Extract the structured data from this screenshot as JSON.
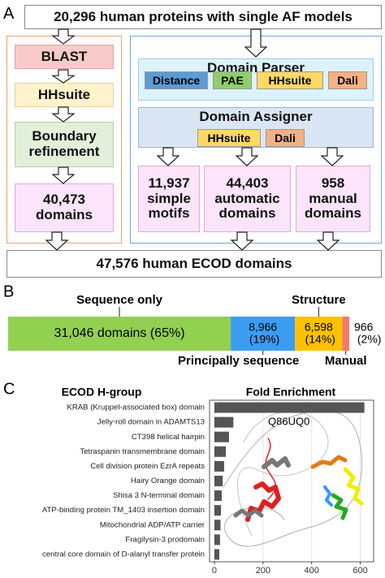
{
  "panel_a": {
    "label": "A",
    "source": "20,296 human proteins with single AF models",
    "left": [
      "BLAST",
      "HHsuite",
      "Boundary refinement",
      "40,473 domains"
    ],
    "parser": {
      "title": "Domain Parser",
      "tools": [
        "Distance",
        "PAE",
        "HHsuite",
        "Dali"
      ]
    },
    "assigner": {
      "title": "Domain Assigner",
      "tools": [
        "HHsuite",
        "Dali"
      ]
    },
    "outputs": [
      "11,937 simple motifs",
      "44,403 automatic domains",
      "958 manual domains"
    ],
    "result": "47,576 human ECOD domains"
  },
  "chart_data": [
    {
      "type": "stacked_bar",
      "label": "B",
      "orientation": "horizontal",
      "series": [
        {
          "name": "Sequence only",
          "color": "#92d050",
          "values": [
            31046
          ],
          "value_labels": [
            "31,046 domains (65%)"
          ]
        },
        {
          "name": "Principally sequence",
          "color": "#3c9cf0",
          "values": [
            8966
          ],
          "value_labels": [
            "8,966 (19%)"
          ]
        },
        {
          "name": "Structure",
          "color": "#ffc000",
          "values": [
            6598
          ],
          "value_labels": [
            "6,598 (14%)"
          ]
        },
        {
          "name": "Manual",
          "color": "#f4796b",
          "values": [
            966
          ],
          "value_labels": [
            "966 (2%)"
          ]
        }
      ]
    },
    {
      "type": "hbar",
      "label": "C",
      "title": "Fold Enrichment",
      "ylabel": "ECOD H-group",
      "annotation": "Q86UQ0",
      "color": "#555555",
      "grid": true,
      "categories": [
        "KRAB (Kruppel-associated box) domain",
        "Jelly-roll domain in ADAMTS13",
        "CT398 helical hairpin",
        "Tetraspanin transmembrane domain",
        "Cell division protein EzrA repeats",
        "Hairy Orange domain",
        "Shisa 3 N-terminal domain",
        "ATP-binding protein TM_1403 insertion domain",
        "Mitochondrial ADP/ATP carrier",
        "Fragilysin-3 prodomain",
        "central core domain of D-alanyl transfer protein"
      ],
      "values": [
        617,
        78,
        60,
        47,
        40,
        34,
        30,
        27,
        25,
        23,
        20
      ],
      "xlim": [
        -20,
        655
      ],
      "xticks": [
        0,
        200,
        400,
        600
      ]
    }
  ]
}
